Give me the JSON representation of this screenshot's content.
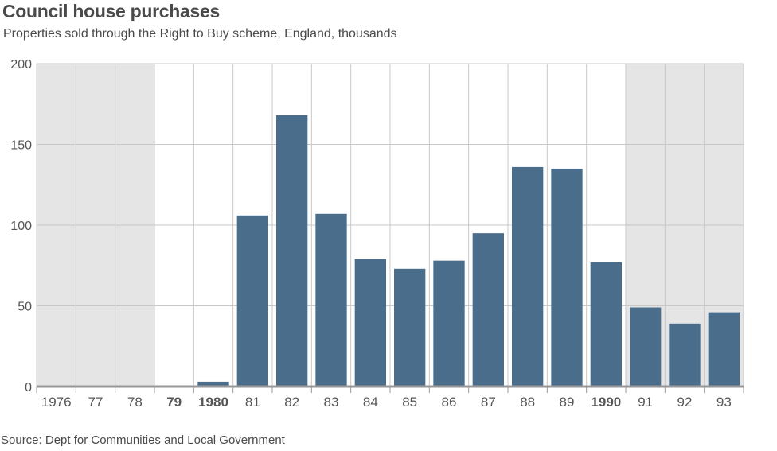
{
  "title": "Council house purchases",
  "subtitle": "Properties sold through the Right to Buy scheme, England, thousands",
  "source": "Source: Dept for Communities and Local Government",
  "colors": {
    "bar": "#4a6d8c",
    "shade": "#e5e5e5",
    "grid": "#c8c8c8",
    "axis": "#999999"
  },
  "chart_data": {
    "type": "bar",
    "title": "Council house purchases",
    "subtitle": "Properties sold through the Right to Buy scheme, England, thousands",
    "categories": [
      "1976",
      "77",
      "78",
      "79",
      "1980",
      "81",
      "82",
      "83",
      "84",
      "85",
      "86",
      "87",
      "88",
      "89",
      "1990",
      "91",
      "92",
      "93"
    ],
    "bold_categories": [
      "79",
      "1980",
      "1990"
    ],
    "values": [
      0,
      0,
      0,
      0,
      3,
      106,
      168,
      107,
      79,
      73,
      78,
      95,
      136,
      135,
      77,
      49,
      39,
      46
    ],
    "shaded_categories": [
      "1976",
      "77",
      "78",
      "91",
      "92",
      "93"
    ],
    "yticks": [
      0,
      50,
      100,
      150,
      200
    ],
    "ylim": [
      0,
      200
    ],
    "grid": true,
    "xlabel": "",
    "ylabel": ""
  }
}
